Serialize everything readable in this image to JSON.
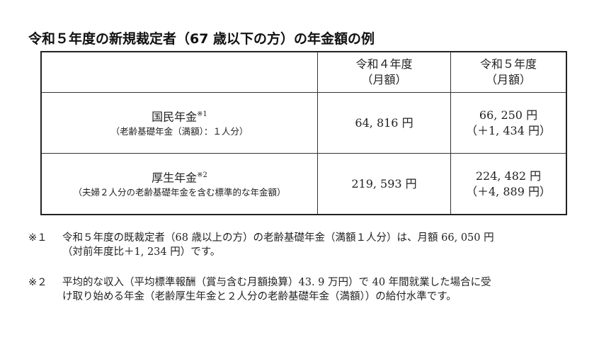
{
  "title": "令和５年度の新規裁定者（67 歳以下の方）の年金額の例",
  "table": {
    "headers": [
      {
        "line1": "",
        "line2": ""
      },
      {
        "line1": "令和４年度",
        "line2": "（月額）"
      },
      {
        "line1": "令和５年度",
        "line2": "（月額）"
      }
    ],
    "rows": [
      {
        "name": "国民年金",
        "ref": "※1",
        "sub": "（老齢基礎年金（満額）：１人分）",
        "r4": "64, 816 円",
        "r5": "66, 250 円",
        "diff": "（＋1, 434 円）"
      },
      {
        "name": "厚生年金",
        "ref": "※2",
        "sub": "（夫婦２人分の老齢基礎年金を含む標準的な年金額）",
        "r4": "219, 593 円",
        "r5": "224, 482 円",
        "diff": "（＋4, 889 円）"
      }
    ]
  },
  "notes": [
    {
      "marker": "※１",
      "line1": "令和５年度の既裁定者（68 歳以上の方）の老齢基礎年金（満額１人分）は、月額 66, 050 円",
      "line2": "（対前年度比＋1, 234 円）です。"
    },
    {
      "marker": "※２",
      "line1": "平均的な収入（平均標準報酬（賞与含む月額換算）43. 9 万円）で 40 年間就業した場合に受",
      "line2": "け取り始める年金（老齢厚生年金と２人分の老齢基礎年金（満額））の給付水準です。"
    }
  ]
}
